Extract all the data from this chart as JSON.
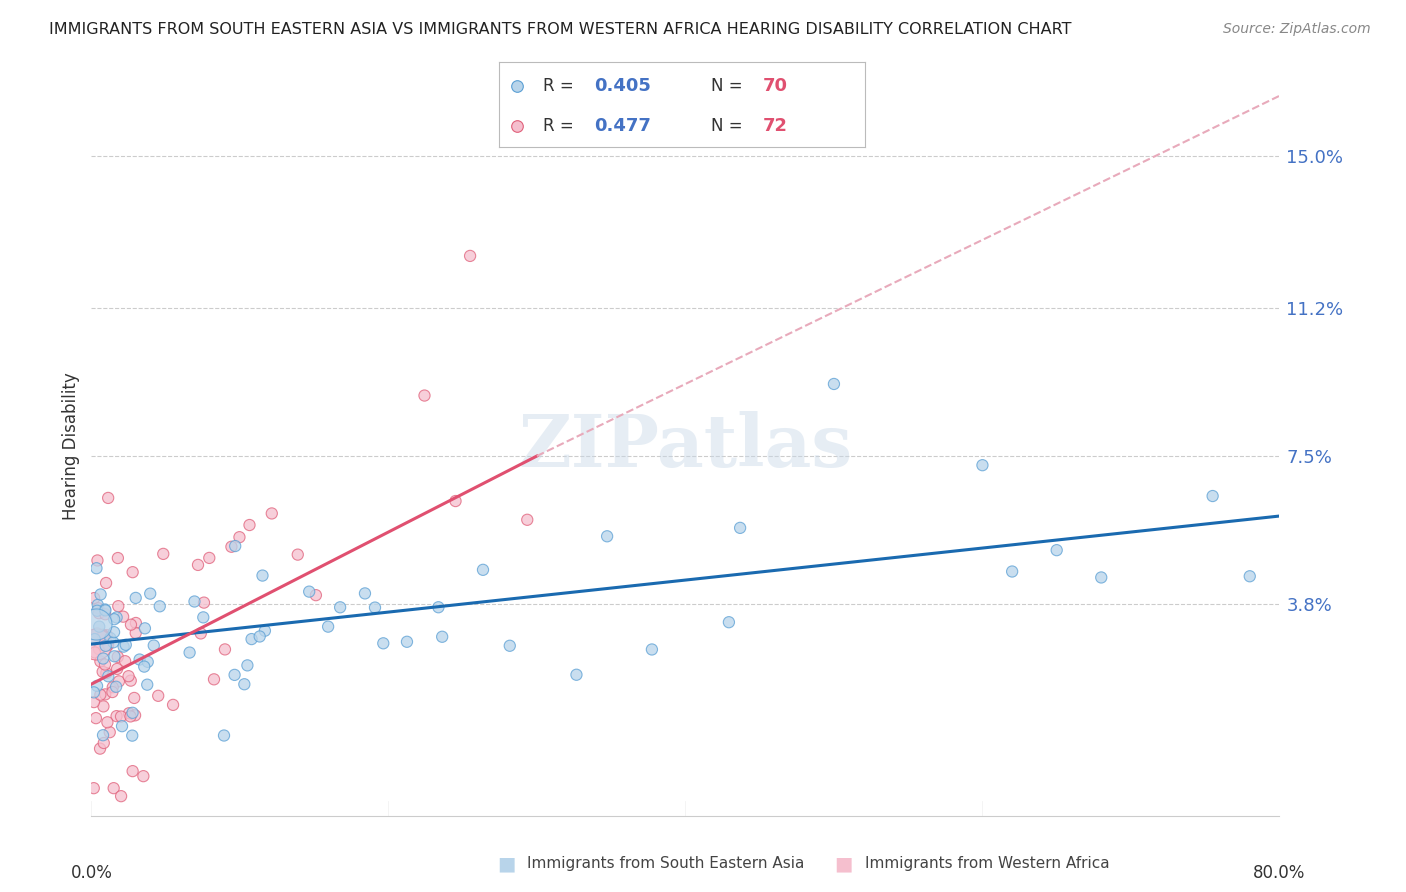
{
  "title": "IMMIGRANTS FROM SOUTH EASTERN ASIA VS IMMIGRANTS FROM WESTERN AFRICA HEARING DISABILITY CORRELATION CHART",
  "source": "Source: ZipAtlas.com",
  "ylabel": "Hearing Disability",
  "ytick_vals": [
    0.15,
    0.112,
    0.075,
    0.038
  ],
  "ytick_labels": [
    "15.0%",
    "11.2%",
    "7.5%",
    "3.8%"
  ],
  "xlim": [
    0.0,
    0.8
  ],
  "ylim": [
    -0.015,
    0.17
  ],
  "legend1_R": "0.405",
  "legend1_N": "70",
  "legend2_R": "0.477",
  "legend2_N": "72",
  "color_blue_face": "#b8d4ea",
  "color_blue_edge": "#5a9fd4",
  "color_pink_face": "#f5bfce",
  "color_pink_edge": "#e0607a",
  "color_blue_line": "#1a6ab0",
  "color_pink_line": "#e05070",
  "color_dashed": "#e8aabb",
  "color_grid": "#cccccc",
  "background_color": "#ffffff",
  "watermark": "ZIPatlas",
  "blue_line_x0": 0.0,
  "blue_line_x1": 0.8,
  "blue_line_y0": 0.028,
  "blue_line_y1": 0.06,
  "pink_line_solid_x0": 0.0,
  "pink_line_solid_x1": 0.3,
  "pink_line_solid_y0": 0.018,
  "pink_line_solid_y1": 0.075,
  "pink_line_dash_x0": 0.3,
  "pink_line_dash_x1": 0.8,
  "pink_line_dash_y0": 0.075,
  "pink_line_dash_y1": 0.165
}
